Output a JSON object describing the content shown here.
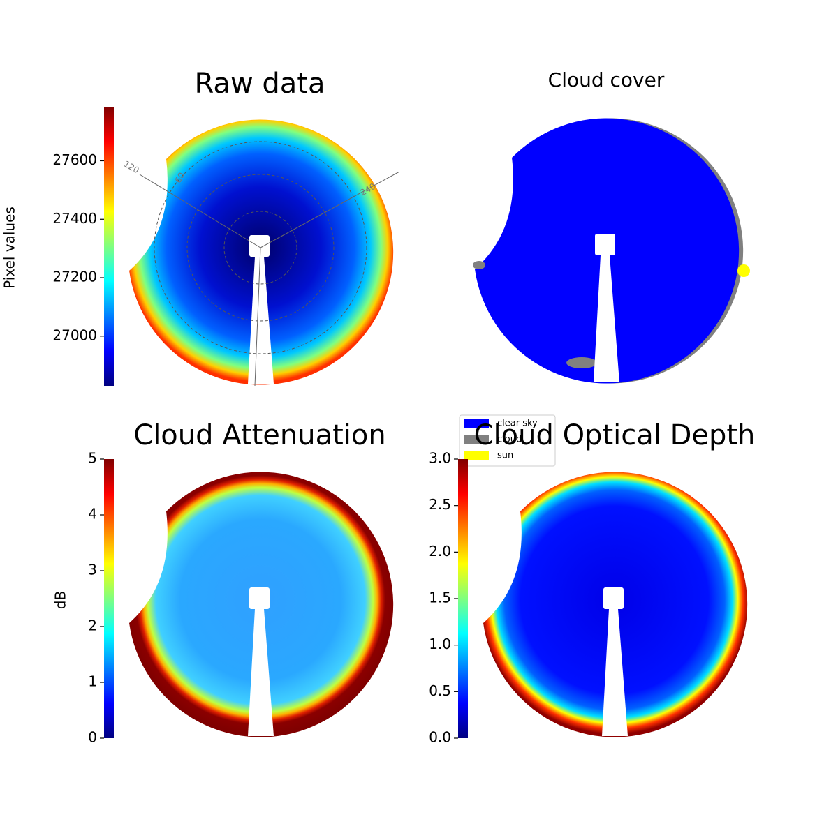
{
  "chart_data": [
    {
      "type": "image",
      "title": "Raw data",
      "ylabel": "Pixel values",
      "colormap": "jet",
      "ylim": [
        26830,
        27785
      ],
      "yticks": [
        27000,
        27200,
        27400,
        27600
      ],
      "annotations": [
        "120",
        "60",
        "240"
      ]
    },
    {
      "type": "mask",
      "title": "Cloud cover",
      "series": [
        {
          "name": "clear sky",
          "color": "#0000ff"
        },
        {
          "name": "cloud",
          "color": "#808080"
        },
        {
          "name": "sun",
          "color": "#ffff00"
        }
      ],
      "legend": "lower left"
    },
    {
      "type": "image",
      "title": "Cloud Attenuation",
      "ylabel": "dB",
      "colormap": "jet",
      "ylim": [
        0,
        5
      ],
      "yticks": [
        0,
        1,
        2,
        3,
        4,
        5
      ]
    },
    {
      "type": "image",
      "title": "Cloud Optical Depth",
      "colormap": "jet",
      "ylim": [
        0,
        3
      ],
      "yticks": [
        {
          "value": 0,
          "label": "0.0"
        },
        0.5,
        {
          "value": 1,
          "label": "1.0"
        },
        1.5,
        {
          "value": 2,
          "label": "2.0"
        },
        2.5,
        {
          "value": 3,
          "label": "3.0"
        }
      ]
    }
  ]
}
